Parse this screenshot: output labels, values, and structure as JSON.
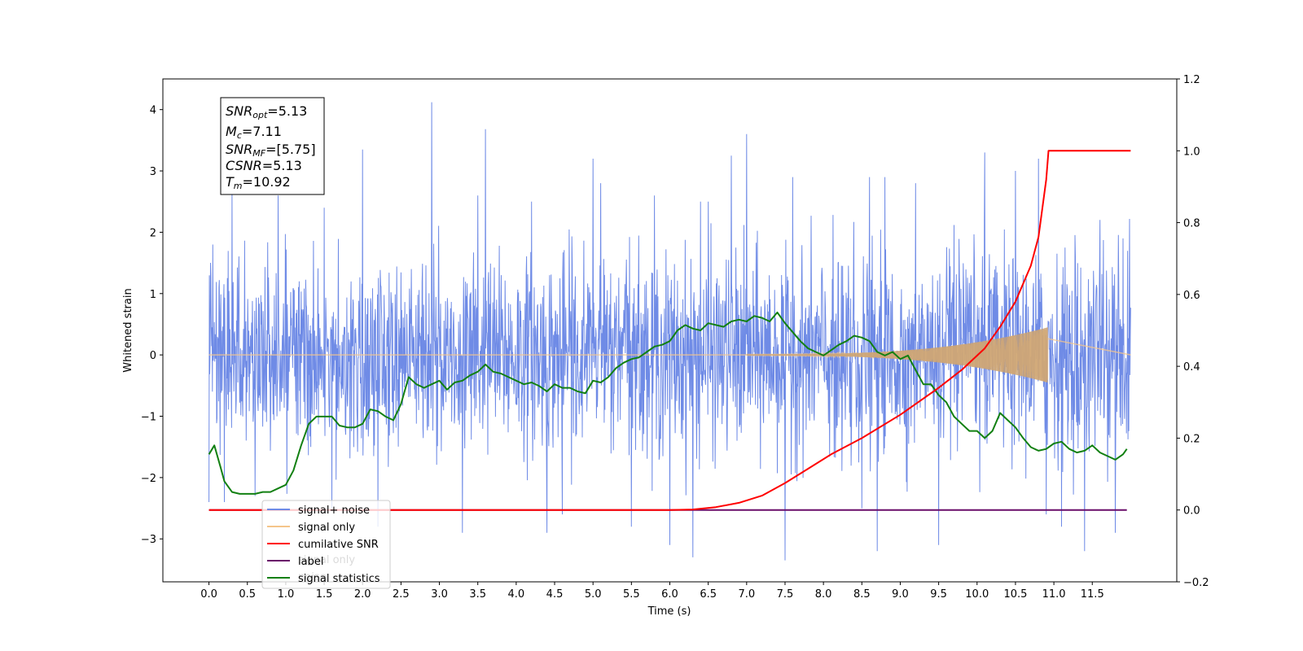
{
  "chart_data": {
    "type": "line",
    "xlabel": "Time (s)",
    "ylabel": "Whitened strain",
    "xlim": [
      -0.6,
      12.6
    ],
    "ylim": [
      -3.7,
      4.5
    ],
    "y2lim": [
      -0.2,
      1.2
    ],
    "x_ticks": [
      0.0,
      0.5,
      1.0,
      1.5,
      2.0,
      2.5,
      3.0,
      3.5,
      4.0,
      4.5,
      5.0,
      5.5,
      6.0,
      6.5,
      7.0,
      7.5,
      8.0,
      8.5,
      9.0,
      9.5,
      10.0,
      10.5,
      11.0,
      11.5
    ],
    "x_tick_labels": [
      "0.0",
      "0.5",
      "1.0",
      "1.5",
      "2.0",
      "2.5",
      "3.0",
      "3.5",
      "4.0",
      "4.5",
      "5.0",
      "5.5",
      "6.0",
      "6.5",
      "7.0",
      "7.5",
      "8.0",
      "8.5",
      "9.0",
      "9.5",
      "10.0",
      "10.5",
      "11.0",
      "11.5"
    ],
    "y_ticks": [
      4,
      3,
      2,
      1,
      0,
      -1,
      -2,
      -3
    ],
    "y_tick_labels": [
      "4",
      "3",
      "2",
      "1",
      "0",
      "−1",
      "−2",
      "−3"
    ],
    "y2_ticks": [
      1.2,
      1.0,
      0.8,
      0.6,
      0.4,
      0.2,
      0.0,
      -0.2
    ],
    "y2_tick_labels": [
      "1.2",
      "1.0",
      "0.8",
      "0.6",
      "0.4",
      "0.2",
      "0.0",
      "−0.2"
    ],
    "grid": false,
    "legend": {
      "placement": "lower-left",
      "entries": [
        {
          "name": "signal+ noise",
          "color": "#6f8be6"
        },
        {
          "name": "signal only",
          "color": "#f5c58a"
        },
        {
          "name": "cumilative SNR",
          "color": "#ff0000"
        },
        {
          "name": "label",
          "color": "#6a0d6a"
        },
        {
          "name": "signal statistics",
          "color": "#128012"
        }
      ],
      "ghost_texts": [
        "signal only",
        "noise"
      ]
    },
    "annotation": {
      "lines": [
        {
          "sym": "SNR",
          "sub": "opt",
          "text": "=5.13"
        },
        {
          "sym": "M",
          "sub": "c",
          "text": "=7.11"
        },
        {
          "sym": "SNR",
          "sub": "MF",
          "text": "=[5.75]"
        },
        {
          "sym": "CSNR",
          "sub": "",
          "text": "=5.13"
        },
        {
          "sym": "T",
          "sub": "m",
          "text": "=10.92"
        }
      ]
    },
    "series": [
      {
        "name": "signal+ noise",
        "axis": "left",
        "color": "#6f8be6",
        "x_range": [
          0.0,
          12.0
        ],
        "rms": 0.78,
        "seed": 17,
        "peaks": [
          [
            0.3,
            2.7
          ],
          [
            0.05,
            1.8
          ],
          [
            0.9,
            2.6
          ],
          [
            1.5,
            2.4
          ],
          [
            2.0,
            3.35
          ],
          [
            2.9,
            4.12
          ],
          [
            3.5,
            2.6
          ],
          [
            3.6,
            3.68
          ],
          [
            4.2,
            2.5
          ],
          [
            5.0,
            3.2
          ],
          [
            5.1,
            2.8
          ],
          [
            5.8,
            2.6
          ],
          [
            6.4,
            2.5
          ],
          [
            6.5,
            2.5
          ],
          [
            6.8,
            3.25
          ],
          [
            7.0,
            3.6
          ],
          [
            7.6,
            2.9
          ],
          [
            8.6,
            2.9
          ],
          [
            8.8,
            2.9
          ],
          [
            9.2,
            2.8
          ],
          [
            9.5,
            2.9
          ],
          [
            10.1,
            3.3
          ],
          [
            10.5,
            3.0
          ],
          [
            10.8,
            3.2
          ],
          [
            11.4,
            3.23
          ],
          [
            11.6,
            2.2
          ],
          [
            11.9,
            1.9
          ],
          [
            0.6,
            -2.3
          ],
          [
            1.6,
            -2.5
          ],
          [
            2.2,
            -2.8
          ],
          [
            3.3,
            -2.9
          ],
          [
            4.4,
            -2.9
          ],
          [
            4.6,
            -2.6
          ],
          [
            5.5,
            -2.8
          ],
          [
            6.0,
            -3.1
          ],
          [
            6.3,
            -3.3
          ],
          [
            7.5,
            -3.35
          ],
          [
            8.5,
            -2.5
          ],
          [
            8.7,
            -3.2
          ],
          [
            9.5,
            -3.1
          ],
          [
            10.9,
            -2.6
          ],
          [
            11.1,
            -2.8
          ],
          [
            11.4,
            -3.2
          ],
          [
            11.8,
            -2.9
          ],
          [
            0.2,
            -2.4
          ],
          [
            0.0,
            -2.4
          ]
        ]
      },
      {
        "name": "signal only",
        "axis": "left",
        "color": "#f5c58a",
        "chirp": {
          "t_start": 7.0,
          "t_merge": 10.92,
          "amp_start": 0.01,
          "amp_end": 0.45,
          "t_end": 12.0
        }
      },
      {
        "name": "cumilative SNR",
        "axis": "right",
        "color": "#ff0000",
        "x": [
          0.0,
          6.0,
          6.3,
          6.6,
          6.9,
          7.2,
          7.5,
          7.8,
          8.1,
          8.5,
          9.0,
          9.5,
          9.8,
          10.1,
          10.3,
          10.5,
          10.7,
          10.8,
          10.9,
          10.93,
          12.0
        ],
        "y": [
          0.0,
          0.0,
          0.0015,
          0.008,
          0.02,
          0.04,
          0.075,
          0.115,
          0.155,
          0.2,
          0.265,
          0.34,
          0.39,
          0.45,
          0.51,
          0.58,
          0.68,
          0.76,
          0.92,
          1.0,
          1.0
        ]
      },
      {
        "name": "label",
        "axis": "right",
        "color": "#6a0d6a",
        "x": [
          0.0,
          11.95
        ],
        "y": [
          0.0,
          0.0
        ]
      },
      {
        "name": "signal statistics",
        "axis": "right",
        "color": "#128012",
        "x": [
          0.0,
          0.07,
          0.15,
          0.2,
          0.3,
          0.4,
          0.5,
          0.6,
          0.7,
          0.8,
          0.9,
          1.0,
          1.1,
          1.2,
          1.3,
          1.4,
          1.5,
          1.6,
          1.7,
          1.8,
          1.9,
          2.0,
          2.1,
          2.2,
          2.3,
          2.4,
          2.5,
          2.6,
          2.7,
          2.8,
          2.9,
          3.0,
          3.1,
          3.2,
          3.3,
          3.4,
          3.5,
          3.6,
          3.7,
          3.8,
          3.9,
          4.0,
          4.1,
          4.2,
          4.3,
          4.4,
          4.5,
          4.6,
          4.7,
          4.8,
          4.9,
          5.0,
          5.1,
          5.2,
          5.3,
          5.4,
          5.5,
          5.6,
          5.7,
          5.8,
          5.9,
          6.0,
          6.1,
          6.2,
          6.3,
          6.4,
          6.5,
          6.6,
          6.7,
          6.8,
          6.9,
          7.0,
          7.1,
          7.2,
          7.3,
          7.4,
          7.5,
          7.6,
          7.7,
          7.8,
          7.9,
          8.0,
          8.1,
          8.2,
          8.3,
          8.4,
          8.5,
          8.6,
          8.7,
          8.8,
          8.9,
          9.0,
          9.1,
          9.2,
          9.3,
          9.4,
          9.5,
          9.6,
          9.7,
          9.8,
          9.9,
          10.0,
          10.1,
          10.2,
          10.3,
          10.4,
          10.5,
          10.6,
          10.7,
          10.8,
          10.9,
          11.0,
          11.1,
          11.2,
          11.3,
          11.4,
          11.5,
          11.6,
          11.7,
          11.8,
          11.9,
          11.95
        ],
        "y": [
          0.155,
          0.18,
          0.12,
          0.08,
          0.05,
          0.045,
          0.045,
          0.045,
          0.05,
          0.05,
          0.06,
          0.07,
          0.11,
          0.18,
          0.24,
          0.26,
          0.26,
          0.26,
          0.235,
          0.23,
          0.23,
          0.24,
          0.28,
          0.275,
          0.26,
          0.25,
          0.295,
          0.37,
          0.35,
          0.34,
          0.35,
          0.36,
          0.335,
          0.355,
          0.36,
          0.375,
          0.385,
          0.405,
          0.385,
          0.38,
          0.37,
          0.36,
          0.35,
          0.355,
          0.345,
          0.33,
          0.35,
          0.34,
          0.34,
          0.33,
          0.325,
          0.36,
          0.355,
          0.37,
          0.395,
          0.41,
          0.42,
          0.425,
          0.44,
          0.455,
          0.46,
          0.47,
          0.5,
          0.515,
          0.505,
          0.5,
          0.52,
          0.515,
          0.51,
          0.525,
          0.53,
          0.525,
          0.54,
          0.535,
          0.525,
          0.55,
          0.52,
          0.495,
          0.47,
          0.45,
          0.44,
          0.43,
          0.445,
          0.46,
          0.47,
          0.485,
          0.48,
          0.47,
          0.44,
          0.43,
          0.44,
          0.42,
          0.43,
          0.39,
          0.35,
          0.35,
          0.32,
          0.3,
          0.26,
          0.24,
          0.22,
          0.22,
          0.2,
          0.22,
          0.27,
          0.25,
          0.23,
          0.2,
          0.175,
          0.165,
          0.17,
          0.185,
          0.19,
          0.17,
          0.16,
          0.165,
          0.18,
          0.16,
          0.15,
          0.14,
          0.155,
          0.17
        ]
      }
    ]
  }
}
